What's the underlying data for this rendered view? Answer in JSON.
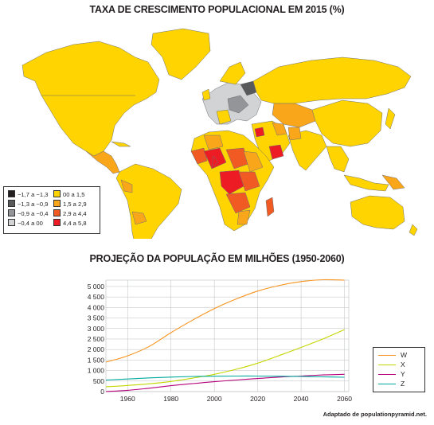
{
  "map": {
    "title": "TAXA DE CRESCIMENTO POPULACIONAL EM 2015 (%)",
    "legend": [
      {
        "label": "−1,7 a −1,3",
        "color": "#231f20"
      },
      {
        "label": "−1,3 a −0,9",
        "color": "#58595b"
      },
      {
        "label": "−0,9 a −0,4",
        "color": "#939598"
      },
      {
        "label": "−0,4 a 00",
        "color": "#d1d3d4"
      },
      {
        "label": "00 a 1,5",
        "color": "#ffd400"
      },
      {
        "label": "1,5 a 2,9",
        "color": "#faa61a"
      },
      {
        "label": "2,9 a 4,4",
        "color": "#f15a22"
      },
      {
        "label": "4,4 a 5,8",
        "color": "#ed1c24"
      }
    ]
  },
  "chart_data": {
    "type": "line",
    "title": "PROJEÇÃO DA POPULAÇÃO EM MILHÕES (1950-2060)",
    "xlabel": "",
    "ylabel": "",
    "xlim": [
      1950,
      2062
    ],
    "ylim": [
      0,
      5300
    ],
    "x_ticks": [
      "1960",
      "1980",
      "2000",
      "2020",
      "2040",
      "2060"
    ],
    "y_ticks": [
      "0",
      "500",
      "1 000",
      "1 500",
      "2 000",
      "2 500",
      "3 000",
      "3 500",
      "4 000",
      "4 500",
      "5 000"
    ],
    "grid": true,
    "legend_position": "right",
    "x": [
      1950,
      1960,
      1970,
      1980,
      1990,
      2000,
      2010,
      2020,
      2030,
      2040,
      2050,
      2060
    ],
    "series": [
      {
        "name": "W",
        "color": "#f7941d",
        "values": [
          1400,
          1700,
          2150,
          2800,
          3400,
          3950,
          4400,
          4780,
          5050,
          5230,
          5320,
          5300
        ]
      },
      {
        "name": "X",
        "color": "#c4d600",
        "values": [
          230,
          290,
          370,
          480,
          640,
          820,
          1060,
          1350,
          1720,
          2100,
          2500,
          2950
        ]
      },
      {
        "name": "Y",
        "color": "#b5007a",
        "values": [
          0,
          60,
          160,
          280,
          380,
          470,
          550,
          620,
          690,
          740,
          790,
          820
        ]
      },
      {
        "name": "Z",
        "color": "#00a99d",
        "values": [
          550,
          600,
          650,
          690,
          720,
          730,
          740,
          740,
          730,
          720,
          700,
          680
        ]
      }
    ]
  },
  "source": "Adaptado de populationpyramid.net."
}
